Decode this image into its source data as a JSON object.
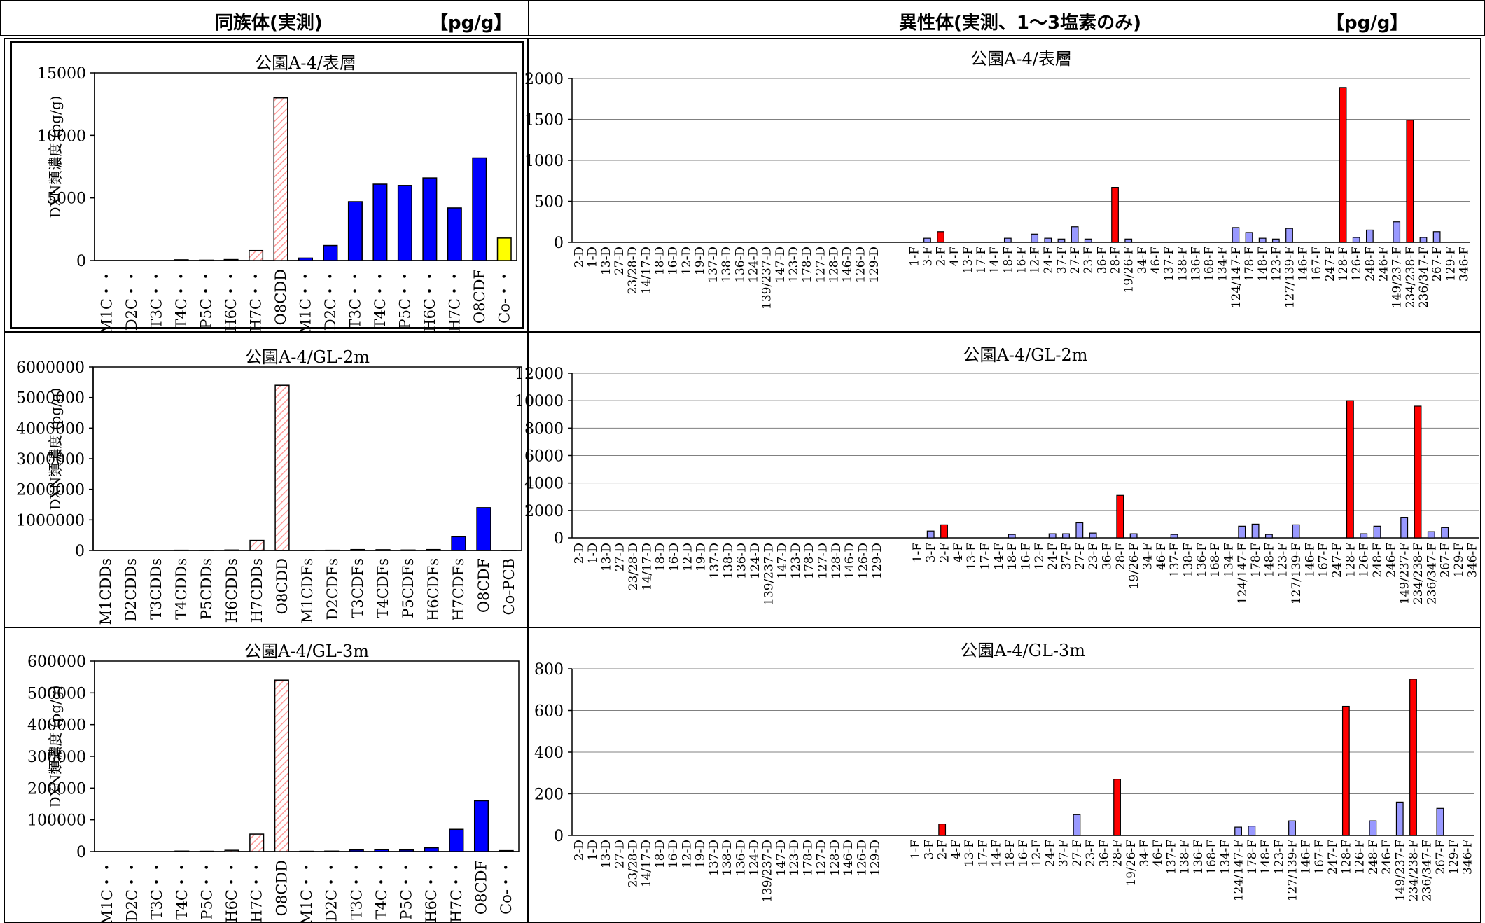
{
  "headers": {
    "left_title": "同族体(実測)",
    "left_unit": "【pg/g】",
    "right_title": "異性体(実測、1～3塩素のみ)",
    "right_unit": "【pg/g】"
  },
  "colors": {
    "blue": "#0000ff",
    "lavender": "#9999ff",
    "red": "#ff0000",
    "yellow": "#ffff00",
    "hatch": "#ff9999"
  },
  "isomer_labels": [
    "2-D",
    "1-D",
    "13-D",
    "27-D",
    "23/28-D",
    "14/17-D",
    "18-D",
    "16-D",
    "12-D",
    "19-D",
    "137-D",
    "138-D",
    "136-D",
    "124-D",
    "139/237-D",
    "147-D",
    "123-D",
    "178-D",
    "127-D",
    "128-D",
    "146-D",
    "126-D",
    "129-D",
    "",
    "",
    "1-F",
    "3-F",
    "2-F",
    "4-F",
    "13-F",
    "17-F",
    "14-F",
    "18-F",
    "16-F",
    "12-F",
    "24-F",
    "37-F",
    "27-F",
    "23-F",
    "36-F",
    "28-F",
    "19/26-F",
    "34-F",
    "46-F",
    "137-F",
    "138-F",
    "136-F",
    "168-F",
    "134-F",
    "124/147-F",
    "178-F",
    "148-F",
    "123-F",
    "127/139-F",
    "146-F",
    "167-F",
    "247-F",
    "128-F",
    "126-F",
    "248-F",
    "246-F",
    "149/237-F",
    "234/238-F",
    "236/347-F",
    "267-F",
    "129-F",
    "346-F"
  ],
  "chart_data": [
    {
      "type": "bar",
      "title": "公園A-4/表層",
      "ylabel": "DXN類濃度 (pg/g)",
      "ylim": [
        0,
        15000
      ],
      "yticks": [
        "0",
        "5000",
        "10000",
        "15000"
      ],
      "categories": [
        "M1C・・",
        "D2C・・",
        "T3C・・",
        "T4C・・",
        "P5C・・",
        "H6C・・",
        "H7C・・",
        "O8CDD",
        "M1C・・",
        "D2C・・",
        "T3C・・",
        "T4C・・",
        "P5C・・",
        "H6C・・",
        "H7C・・",
        "O8CDF",
        "Co-・・"
      ],
      "values": [
        0,
        0,
        0,
        60,
        30,
        80,
        800,
        13000,
        200,
        1200,
        4700,
        6100,
        6000,
        6600,
        4200,
        8200,
        1800
      ],
      "styles": [
        "w",
        "w",
        "w",
        "h",
        "h",
        "h",
        "h",
        "h",
        "b",
        "b",
        "b",
        "b",
        "b",
        "b",
        "b",
        "b",
        "y"
      ]
    },
    {
      "type": "bar",
      "title": "公園A-4/GL-2m",
      "ylabel": "DXN類濃度 (pg/g)",
      "ylim": [
        0,
        6000000
      ],
      "yticks": [
        "0",
        "1000000",
        "2000000",
        "3000000",
        "4000000",
        "5000000",
        "6000000"
      ],
      "categories": [
        "M1CDDs",
        "D2CDDs",
        "T3CDDs",
        "T4CDDs",
        "P5CDDs",
        "H6CDDs",
        "H7CDDs",
        "O8CDD",
        "M1CDFs",
        "D2CDFs",
        "T3CDFs",
        "T4CDFs",
        "P5CDFs",
        "H6CDFs",
        "H7CDFs",
        "O8CDF",
        "Co-PCB"
      ],
      "values": [
        0,
        0,
        0,
        8000,
        5000,
        15000,
        330000,
        5400000,
        5000,
        8000,
        30000,
        25000,
        15000,
        30000,
        450000,
        1400000,
        5000
      ],
      "styles": [
        "w",
        "w",
        "w",
        "h",
        "h",
        "h",
        "h",
        "h",
        "b",
        "b",
        "b",
        "b",
        "b",
        "b",
        "b",
        "b",
        "y"
      ]
    },
    {
      "type": "bar",
      "title": "公園A-4/GL-3m",
      "ylabel": "DXN類濃度 (pg/g)",
      "ylim": [
        0,
        600000
      ],
      "yticks": [
        "0",
        "100000",
        "200000",
        "300000",
        "400000",
        "500000",
        "600000"
      ],
      "categories": [
        "M1C・・",
        "D2C・・",
        "T3C・・",
        "T4C・・",
        "P5C・・",
        "H6C・・",
        "H7C・・",
        "O8CDD",
        "M1C・・",
        "D2C・・",
        "T3C・・",
        "T4C・・",
        "P5C・・",
        "H6C・・",
        "H7C・・",
        "O8CDF",
        "Co-・・"
      ],
      "values": [
        0,
        0,
        0,
        1500,
        1000,
        4000,
        55000,
        540000,
        1000,
        1500,
        5000,
        6000,
        5000,
        12000,
        70000,
        160000,
        3000
      ],
      "styles": [
        "w",
        "w",
        "w",
        "h",
        "h",
        "h",
        "h",
        "h",
        "b",
        "b",
        "b",
        "b",
        "b",
        "b",
        "b",
        "b",
        "y"
      ]
    },
    {
      "type": "bar",
      "title": "公園A-4/表層",
      "ylim": [
        0,
        2000
      ],
      "yticks": [
        "0",
        "500",
        "1000",
        "1500",
        "2000"
      ],
      "values": [
        0,
        0,
        0,
        0,
        0,
        0,
        0,
        0,
        0,
        0,
        0,
        0,
        0,
        0,
        0,
        0,
        0,
        0,
        0,
        0,
        0,
        0,
        0,
        0,
        0,
        0,
        50,
        130,
        0,
        0,
        0,
        0,
        50,
        0,
        100,
        50,
        40,
        190,
        40,
        0,
        670,
        40,
        0,
        0,
        0,
        0,
        0,
        0,
        0,
        180,
        120,
        50,
        40,
        170,
        0,
        0,
        0,
        1890,
        60,
        150,
        0,
        250,
        1490,
        60,
        130,
        0,
        0
      ],
      "red": [
        "2-F",
        "28-F",
        "128-F",
        "234/238-F"
      ]
    },
    {
      "type": "bar",
      "title": "公園A-4/GL-2m",
      "ylim": [
        0,
        12000
      ],
      "yticks": [
        "0",
        "2000",
        "4000",
        "6000",
        "8000",
        "10000",
        "12000"
      ],
      "values": [
        0,
        0,
        0,
        0,
        0,
        0,
        0,
        0,
        0,
        0,
        0,
        0,
        0,
        0,
        0,
        0,
        0,
        0,
        0,
        0,
        0,
        0,
        0,
        0,
        0,
        0,
        500,
        950,
        0,
        0,
        0,
        0,
        250,
        0,
        0,
        300,
        300,
        1100,
        350,
        0,
        3100,
        300,
        0,
        0,
        250,
        0,
        0,
        0,
        0,
        850,
        1000,
        250,
        0,
        950,
        0,
        0,
        0,
        10000,
        300,
        850,
        0,
        1500,
        9600,
        450,
        750,
        0,
        0
      ],
      "red": [
        "2-F",
        "28-F",
        "128-F",
        "234/238-F"
      ]
    },
    {
      "type": "bar",
      "title": "公園A-4/GL-3m",
      "ylim": [
        0,
        800
      ],
      "yticks": [
        "0",
        "200",
        "400",
        "600",
        "800"
      ],
      "values": [
        0,
        0,
        0,
        0,
        0,
        0,
        0,
        0,
        0,
        0,
        0,
        0,
        0,
        0,
        0,
        0,
        0,
        0,
        0,
        0,
        0,
        0,
        0,
        0,
        0,
        0,
        0,
        55,
        0,
        0,
        0,
        0,
        0,
        0,
        0,
        0,
        0,
        100,
        0,
        0,
        270,
        0,
        0,
        0,
        0,
        0,
        0,
        0,
        0,
        40,
        45,
        0,
        0,
        70,
        0,
        0,
        0,
        620,
        0,
        70,
        0,
        160,
        750,
        0,
        130,
        0,
        0
      ],
      "red": [
        "2-F",
        "28-F",
        "128-F",
        "234/238-F"
      ]
    }
  ]
}
